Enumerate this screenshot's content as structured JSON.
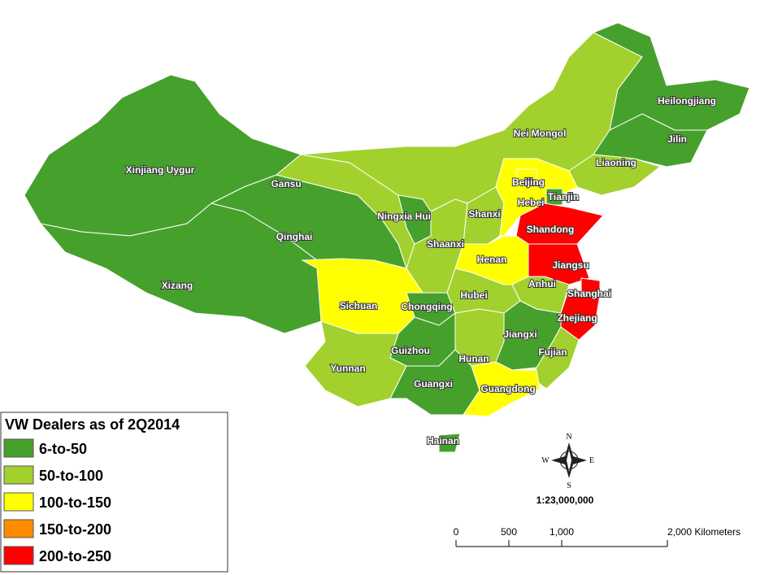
{
  "map": {
    "provinces": [
      {
        "name": "Xinjiang Uygur",
        "color": "#46a12c"
      },
      {
        "name": "Xizang",
        "color": "#46a12c"
      },
      {
        "name": "Qinghai",
        "color": "#46a12c"
      },
      {
        "name": "Gansu",
        "color": "#a2d12e"
      },
      {
        "name": "Nei Mongol",
        "color": "#a2d12e"
      },
      {
        "name": "Heilongjiang",
        "color": "#46a12c"
      },
      {
        "name": "Jilin",
        "color": "#46a12c"
      },
      {
        "name": "Liaoning",
        "color": "#a2d12e"
      },
      {
        "name": "Ningxia Hui",
        "color": "#46a12c"
      },
      {
        "name": "Shaanxi",
        "color": "#a2d12e"
      },
      {
        "name": "Shanxi",
        "color": "#a2d12e"
      },
      {
        "name": "Hebei",
        "color": "#ffff00"
      },
      {
        "name": "Beijing",
        "color": "#ffff00"
      },
      {
        "name": "Tianjin",
        "color": "#46a12c"
      },
      {
        "name": "Shandong",
        "color": "#ff0000"
      },
      {
        "name": "Henan",
        "color": "#ffff00"
      },
      {
        "name": "Jiangsu",
        "color": "#ff0000"
      },
      {
        "name": "Anhui",
        "color": "#a2d12e"
      },
      {
        "name": "Shanghai",
        "color": "#ff0000"
      },
      {
        "name": "Zhejiang",
        "color": "#ff0000"
      },
      {
        "name": "Hubei",
        "color": "#a2d12e"
      },
      {
        "name": "Chongqing",
        "color": "#46a12c"
      },
      {
        "name": "Sichuan",
        "color": "#ffff00"
      },
      {
        "name": "Hunan",
        "color": "#a2d12e"
      },
      {
        "name": "Jiangxi",
        "color": "#46a12c"
      },
      {
        "name": "Fujian",
        "color": "#a2d12e"
      },
      {
        "name": "Guizhou",
        "color": "#46a12c"
      },
      {
        "name": "Yunnan",
        "color": "#a2d12e"
      },
      {
        "name": "Guangxi",
        "color": "#46a12c"
      },
      {
        "name": "Guangdong",
        "color": "#ffff00"
      },
      {
        "name": "Hainan",
        "color": "#46a12c"
      }
    ],
    "legend": {
      "title": "VW Dealers as of 2Q2014",
      "items": [
        {
          "label": "6-to-50",
          "color": "#46a12c"
        },
        {
          "label": "50-to-100",
          "color": "#a2d12e"
        },
        {
          "label": "100-to-150",
          "color": "#ffff00"
        },
        {
          "label": "150-to-200",
          "color": "#ff8c00"
        },
        {
          "label": "200-to-250",
          "color": "#ff0000"
        }
      ]
    },
    "compass": [
      "N",
      "E",
      "S",
      "W"
    ],
    "scale_text": "1:23,000,000",
    "scale_bar": {
      "ticks": [
        0,
        500,
        {
          "value": 1000,
          "label": "1,000"
        },
        {
          "value": 2000,
          "label": "2,000 Kilometers"
        }
      ]
    }
  }
}
